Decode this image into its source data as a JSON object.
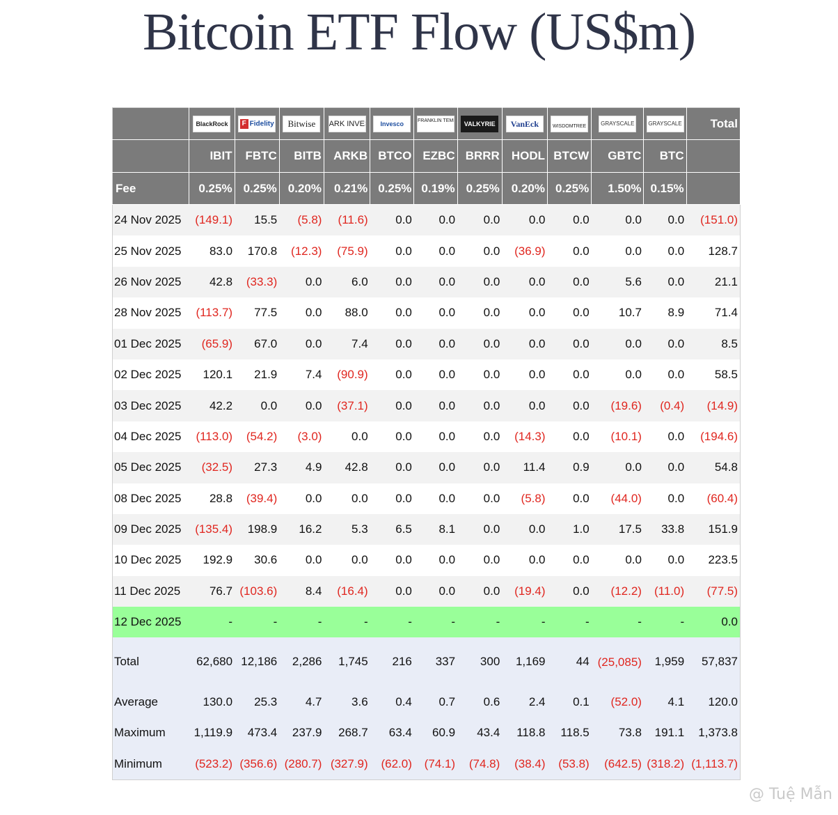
{
  "title": "Bitcoin ETF Flow (US$m)",
  "watermark": "@ Tuệ Mẫn",
  "issuers": [
    {
      "logo": "BlackRock",
      "ticker": "IBIT",
      "fee": "0.25%"
    },
    {
      "logo": "Fidelity",
      "ticker": "FBTC",
      "fee": "0.25%"
    },
    {
      "logo": "Bitwise",
      "ticker": "BITB",
      "fee": "0.20%"
    },
    {
      "logo": "ARK INVEST",
      "ticker": "ARKB",
      "fee": "0.21%"
    },
    {
      "logo": "Invesco",
      "ticker": "BTCO",
      "fee": "0.25%"
    },
    {
      "logo": "FRANKLIN TEMPLETON",
      "ticker": "EZBC",
      "fee": "0.19%"
    },
    {
      "logo": "VALKYRIE",
      "ticker": "BRRR",
      "fee": "0.25%"
    },
    {
      "logo": "VanEck",
      "ticker": "HODL",
      "fee": "0.20%"
    },
    {
      "logo": "WISDOMTREE",
      "ticker": "BTCW",
      "fee": "0.25%"
    },
    {
      "logo": "GRAYSCALE",
      "ticker": "GBTC",
      "fee": "1.50%"
    },
    {
      "logo": "GRAYSCALE",
      "ticker": "BTC",
      "fee": "0.15%"
    }
  ],
  "header": {
    "total_label": "Total",
    "fee_label": "Fee"
  },
  "rows": [
    {
      "date": "24 Nov 2025",
      "values": [
        "(149.1)",
        "15.5",
        "(5.8)",
        "(11.6)",
        "0.0",
        "0.0",
        "0.0",
        "0.0",
        "0.0",
        "0.0",
        "0.0",
        "(151.0)"
      ]
    },
    {
      "date": "25 Nov 2025",
      "values": [
        "83.0",
        "170.8",
        "(12.3)",
        "(75.9)",
        "0.0",
        "0.0",
        "0.0",
        "(36.9)",
        "0.0",
        "0.0",
        "0.0",
        "128.7"
      ]
    },
    {
      "date": "26 Nov 2025",
      "values": [
        "42.8",
        "(33.3)",
        "0.0",
        "6.0",
        "0.0",
        "0.0",
        "0.0",
        "0.0",
        "0.0",
        "5.6",
        "0.0",
        "21.1"
      ]
    },
    {
      "date": "28 Nov 2025",
      "values": [
        "(113.7)",
        "77.5",
        "0.0",
        "88.0",
        "0.0",
        "0.0",
        "0.0",
        "0.0",
        "0.0",
        "10.7",
        "8.9",
        "71.4"
      ]
    },
    {
      "date": "01 Dec 2025",
      "values": [
        "(65.9)",
        "67.0",
        "0.0",
        "7.4",
        "0.0",
        "0.0",
        "0.0",
        "0.0",
        "0.0",
        "0.0",
        "0.0",
        "8.5"
      ]
    },
    {
      "date": "02 Dec 2025",
      "values": [
        "120.1",
        "21.9",
        "7.4",
        "(90.9)",
        "0.0",
        "0.0",
        "0.0",
        "0.0",
        "0.0",
        "0.0",
        "0.0",
        "58.5"
      ]
    },
    {
      "date": "03 Dec 2025",
      "values": [
        "42.2",
        "0.0",
        "0.0",
        "(37.1)",
        "0.0",
        "0.0",
        "0.0",
        "0.0",
        "0.0",
        "(19.6)",
        "(0.4)",
        "(14.9)"
      ]
    },
    {
      "date": "04 Dec 2025",
      "values": [
        "(113.0)",
        "(54.2)",
        "(3.0)",
        "0.0",
        "0.0",
        "0.0",
        "0.0",
        "(14.3)",
        "0.0",
        "(10.1)",
        "0.0",
        "(194.6)"
      ]
    },
    {
      "date": "05 Dec 2025",
      "values": [
        "(32.5)",
        "27.3",
        "4.9",
        "42.8",
        "0.0",
        "0.0",
        "0.0",
        "11.4",
        "0.9",
        "0.0",
        "0.0",
        "54.8"
      ]
    },
    {
      "date": "08 Dec 2025",
      "values": [
        "28.8",
        "(39.4)",
        "0.0",
        "0.0",
        "0.0",
        "0.0",
        "0.0",
        "(5.8)",
        "0.0",
        "(44.0)",
        "0.0",
        "(60.4)"
      ]
    },
    {
      "date": "09 Dec 2025",
      "values": [
        "(135.4)",
        "198.9",
        "16.2",
        "5.3",
        "6.5",
        "8.1",
        "0.0",
        "0.0",
        "1.0",
        "17.5",
        "33.8",
        "151.9"
      ]
    },
    {
      "date": "10 Dec 2025",
      "values": [
        "192.9",
        "30.6",
        "0.0",
        "0.0",
        "0.0",
        "0.0",
        "0.0",
        "0.0",
        "0.0",
        "0.0",
        "0.0",
        "223.5"
      ]
    },
    {
      "date": "11 Dec 2025",
      "values": [
        "76.7",
        "(103.6)",
        "8.4",
        "(16.4)",
        "0.0",
        "0.0",
        "0.0",
        "(19.4)",
        "0.0",
        "(12.2)",
        "(11.0)",
        "(77.5)"
      ]
    },
    {
      "date": "12 Dec 2025",
      "values": [
        "-",
        "-",
        "-",
        "-",
        "-",
        "-",
        "-",
        "-",
        "-",
        "-",
        "-",
        "0.0"
      ],
      "highlight": true
    }
  ],
  "summary": [
    {
      "label": "Total",
      "values": [
        "62,680",
        "12,186",
        "2,286",
        "1,745",
        "216",
        "337",
        "300",
        "1,169",
        "44",
        "(25,085)",
        "1,959",
        "57,837"
      ]
    },
    {
      "label": "Average",
      "values": [
        "130.0",
        "25.3",
        "4.7",
        "3.6",
        "0.4",
        "0.7",
        "0.6",
        "2.4",
        "0.1",
        "(52.0)",
        "4.1",
        "120.0"
      ]
    },
    {
      "label": "Maximum",
      "values": [
        "1,119.9",
        "473.4",
        "237.9",
        "268.7",
        "63.4",
        "60.9",
        "43.4",
        "118.8",
        "118.5",
        "73.8",
        "191.1",
        "1,373.8"
      ]
    },
    {
      "label": "Minimum",
      "values": [
        "(523.2)",
        "(356.6)",
        "(280.7)",
        "(327.9)",
        "(62.0)",
        "(74.1)",
        "(74.8)",
        "(38.4)",
        "(53.8)",
        "(642.5)",
        "(318.2)",
        "(1,113.7)"
      ]
    }
  ],
  "colors": {
    "header_bg": "#7b7b7b",
    "negative": "#e0261f",
    "highlight_row": "#99ff99",
    "summary_bg": "#e9edf7",
    "title": "#2f3448"
  }
}
